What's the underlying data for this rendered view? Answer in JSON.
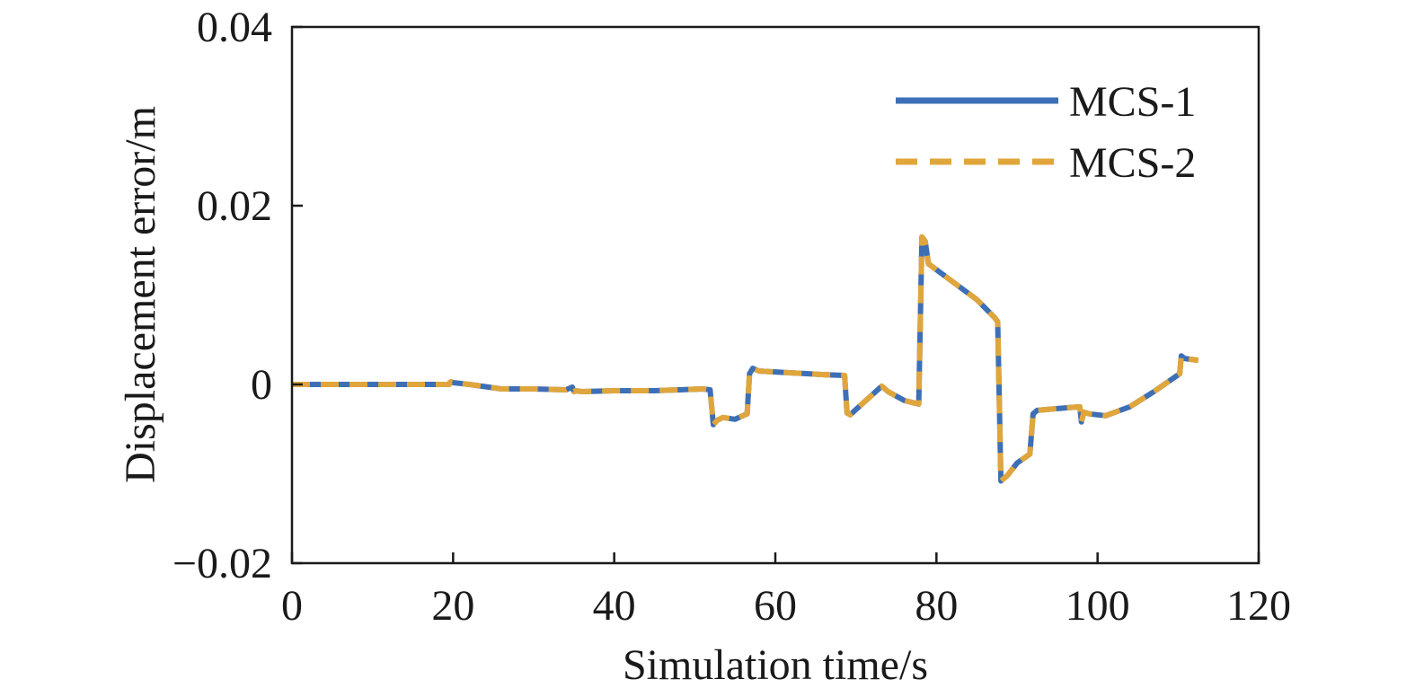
{
  "chart_data": {
    "type": "line",
    "xlabel": "Simulation time/s",
    "ylabel": "Displacement error/m",
    "xlim": [
      0,
      120
    ],
    "ylim": [
      -0.02,
      0.04
    ],
    "xticks": [
      {
        "value": 0,
        "label": "0"
      },
      {
        "value": 20,
        "label": "20"
      },
      {
        "value": 40,
        "label": "40"
      },
      {
        "value": 60,
        "label": "60"
      },
      {
        "value": 80,
        "label": "80"
      },
      {
        "value": 100,
        "label": "100"
      },
      {
        "value": 120,
        "label": "120"
      }
    ],
    "yticks": [
      {
        "value": -0.02,
        "label": "−0.02"
      },
      {
        "value": 0,
        "label": "0"
      },
      {
        "value": 0.02,
        "label": "0.02"
      },
      {
        "value": 0.04,
        "label": "0.04"
      }
    ],
    "grid": false,
    "legend_position": "top-right",
    "series": [
      {
        "name": "MCS-1",
        "color": "#3d6fb6",
        "dash": "solid",
        "x": [
          0,
          19.5,
          19.6,
          19.8,
          20.0,
          22,
          26,
          30,
          34,
          34.8,
          35.0,
          35.2,
          36,
          40,
          45,
          51,
          51.9,
          52.3,
          52.8,
          53.5,
          55,
          56.5,
          56.8,
          57.2,
          58,
          62,
          66,
          68.6,
          68.9,
          69.3,
          70,
          73.2,
          74,
          76,
          77.8,
          78.2,
          78.6,
          79,
          82,
          85,
          87.2,
          87.6,
          88,
          88.8,
          90,
          91.6,
          92.0,
          92.5,
          95,
          97.8,
          98.0,
          98.3,
          99,
          101,
          104,
          107,
          110.2,
          110.4,
          110.8,
          112.5
        ],
        "y": [
          0,
          0,
          0.0002,
          0.0003,
          0.0002,
          0,
          -0.0005,
          -0.0005,
          -0.0006,
          -0.0003,
          -0.0008,
          -0.0007,
          -0.0008,
          -0.0007,
          -0.0007,
          -0.0005,
          -0.0006,
          -0.0045,
          -0.004,
          -0.0037,
          -0.0039,
          -0.0033,
          0.0012,
          0.0018,
          0.0015,
          0.0013,
          0.0011,
          0.001,
          -0.0032,
          -0.0034,
          -0.0028,
          -0.0002,
          -0.0008,
          -0.0018,
          -0.0022,
          0.0165,
          0.016,
          0.0135,
          0.0115,
          0.0095,
          0.0075,
          0.007,
          -0.0108,
          -0.0102,
          -0.0088,
          -0.0078,
          -0.0033,
          -0.0029,
          -0.0027,
          -0.0025,
          -0.0042,
          -0.0031,
          -0.0033,
          -0.0035,
          -0.0025,
          -0.0008,
          0.0012,
          0.0032,
          0.0029,
          0.0027
        ]
      },
      {
        "name": "MCS-2",
        "color": "#e0a63c",
        "dash": "dashed",
        "x": [
          0,
          19.5,
          19.6,
          19.8,
          20.0,
          22,
          26,
          30,
          34,
          34.8,
          35.0,
          35.2,
          36,
          40,
          45,
          51,
          51.9,
          52.3,
          52.8,
          53.5,
          55,
          56.5,
          56.8,
          57.2,
          58,
          62,
          66,
          68.6,
          68.9,
          69.3,
          70,
          73.2,
          74,
          76,
          77.8,
          78.2,
          78.6,
          79,
          82,
          85,
          87.2,
          87.6,
          88,
          88.8,
          90,
          91.6,
          92.0,
          92.5,
          95,
          97.8,
          98.0,
          98.3,
          99,
          101,
          104,
          107,
          110.2,
          110.4,
          110.8,
          112.5
        ],
        "y": [
          0,
          0,
          0.0002,
          0.0003,
          0.0002,
          0,
          -0.0005,
          -0.0005,
          -0.0006,
          -0.0003,
          -0.0008,
          -0.0007,
          -0.0008,
          -0.0007,
          -0.0007,
          -0.0005,
          -0.0006,
          -0.0045,
          -0.004,
          -0.0037,
          -0.0039,
          -0.0033,
          0.0012,
          0.0018,
          0.0015,
          0.0013,
          0.0011,
          0.001,
          -0.0032,
          -0.0034,
          -0.0028,
          -0.0002,
          -0.0008,
          -0.0018,
          -0.0022,
          0.0165,
          0.016,
          0.0135,
          0.0115,
          0.0095,
          0.0075,
          0.007,
          -0.0108,
          -0.0102,
          -0.0088,
          -0.0078,
          -0.0033,
          -0.0029,
          -0.0027,
          -0.0025,
          -0.0042,
          -0.0031,
          -0.0033,
          -0.0035,
          -0.0025,
          -0.0008,
          0.0012,
          0.0032,
          0.0029,
          0.0027
        ]
      }
    ]
  }
}
